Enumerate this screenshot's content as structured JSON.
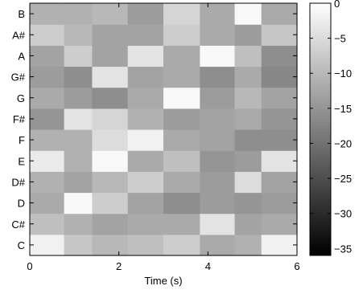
{
  "chart_data": {
    "type": "heatmap",
    "xlabel": "Time (s)",
    "ylabel": "",
    "title": "",
    "xlim": [
      0,
      6
    ],
    "x_ticks": [
      "0",
      "2",
      "4",
      "6"
    ],
    "x_tick_values": [
      0,
      2,
      4,
      6
    ],
    "y_categories": [
      "C",
      "C#",
      "D",
      "D#",
      "E",
      "F",
      "F#",
      "G",
      "G#",
      "A",
      "A#",
      "B"
    ],
    "colorbar": {
      "colormap": "gray",
      "clim": [
        -36,
        0
      ],
      "ticks": [
        "0",
        "−5",
        "−10",
        "−15",
        "−20",
        "−25",
        "−30",
        "−35"
      ],
      "tick_values": [
        0,
        -5,
        -10,
        -15,
        -20,
        -25,
        -30,
        -35
      ]
    },
    "time_segments": [
      [
        0.0,
        0.77
      ],
      [
        0.77,
        1.4
      ],
      [
        1.4,
        2.2
      ],
      [
        2.2,
        3.0
      ],
      [
        3.0,
        3.82
      ],
      [
        3.82,
        4.6
      ],
      [
        4.6,
        5.2
      ],
      [
        5.2,
        6.0
      ]
    ],
    "values_by_note": {
      "C": [
        -2,
        -8,
        -10,
        -9,
        -7,
        -12,
        -11,
        -2
      ],
      "C#": [
        -9,
        -11,
        -13,
        -12,
        -12,
        -4,
        -13,
        -12
      ],
      "D": [
        -12,
        -1,
        -7,
        -13,
        -16,
        -14,
        -15,
        -14
      ],
      "D#": [
        -11,
        -13,
        -10,
        -7,
        -12,
        -14,
        -5,
        -13
      ],
      "E": [
        -3,
        -11,
        -1,
        -12,
        -9,
        -15,
        -14,
        -4
      ],
      "F": [
        -11,
        -11,
        -5,
        -2,
        -12,
        -13,
        -16,
        -16
      ],
      "F#": [
        -15,
        -4,
        -6,
        -11,
        -14,
        -13,
        -12,
        -15
      ],
      "G": [
        -12,
        -14,
        -16,
        -12,
        -1,
        -14,
        -10,
        -13
      ],
      "G#": [
        -14,
        -16,
        -4,
        -13,
        -12,
        -16,
        -12,
        -17
      ],
      "A": [
        -13,
        -7,
        -13,
        -4,
        -12,
        -1,
        -9,
        -16
      ],
      "A#": [
        -7,
        -10,
        -13,
        -13,
        -7,
        -12,
        -14,
        -8
      ],
      "B": [
        -11,
        -11,
        -10,
        -14,
        -6,
        -12,
        -1,
        -12
      ]
    }
  }
}
